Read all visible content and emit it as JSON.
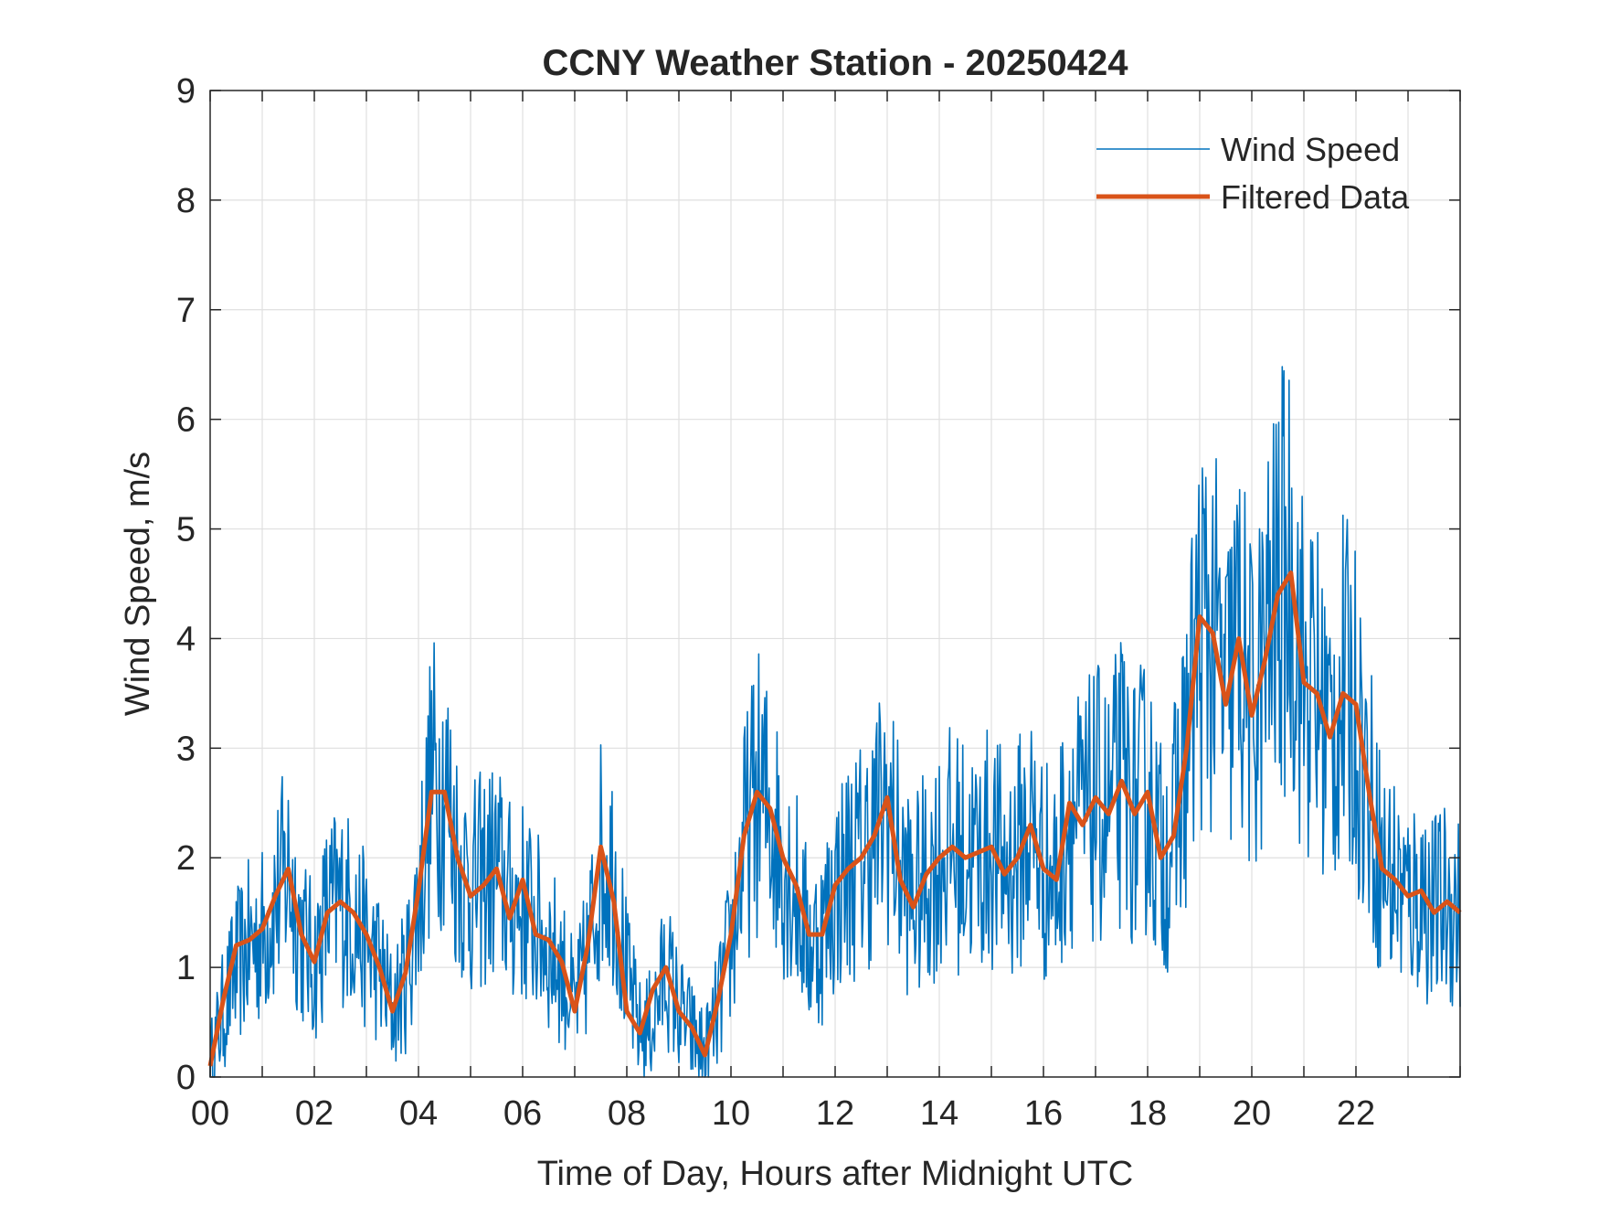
{
  "chart_data": {
    "type": "line",
    "title": "CCNY Weather Station - 20250424",
    "xlabel": "Time of Day, Hours after Midnight UTC",
    "ylabel": "Wind Speed, m/s",
    "xlim": [
      0,
      24
    ],
    "ylim": [
      0,
      9
    ],
    "xticks": [
      0,
      2,
      4,
      6,
      8,
      10,
      12,
      14,
      16,
      18,
      20,
      22
    ],
    "xtick_labels": [
      "00",
      "02",
      "04",
      "06",
      "08",
      "10",
      "12",
      "14",
      "16",
      "18",
      "20",
      "22"
    ],
    "yticks": [
      0,
      1,
      2,
      3,
      4,
      5,
      6,
      7,
      8,
      9
    ],
    "ytick_labels": [
      "0",
      "1",
      "2",
      "3",
      "4",
      "5",
      "6",
      "7",
      "8",
      "9"
    ],
    "grid": true,
    "legend_position": "top-right",
    "series": [
      {
        "name": "Wind Speed",
        "color": "#0072BD",
        "line_width": "thin",
        "x": [
          0.0,
          0.25,
          0.5,
          0.75,
          1.0,
          1.25,
          1.5,
          1.75,
          2.0,
          2.25,
          2.5,
          2.75,
          3.0,
          3.25,
          3.5,
          3.75,
          4.0,
          4.25,
          4.5,
          4.75,
          5.0,
          5.25,
          5.5,
          5.75,
          6.0,
          6.25,
          6.5,
          6.75,
          7.0,
          7.25,
          7.5,
          7.75,
          8.0,
          8.25,
          8.5,
          8.75,
          9.0,
          9.25,
          9.5,
          9.75,
          10.0,
          10.25,
          10.5,
          10.75,
          11.0,
          11.25,
          11.5,
          11.75,
          12.0,
          12.25,
          12.5,
          12.75,
          13.0,
          13.25,
          13.5,
          13.75,
          14.0,
          14.25,
          14.5,
          14.75,
          15.0,
          15.25,
          15.5,
          15.75,
          16.0,
          16.25,
          16.5,
          16.75,
          17.0,
          17.25,
          17.5,
          17.75,
          18.0,
          18.25,
          18.5,
          18.75,
          19.0,
          19.25,
          19.5,
          19.75,
          20.0,
          20.25,
          20.5,
          20.75,
          21.0,
          21.25,
          21.5,
          21.75,
          22.0,
          22.25,
          22.5,
          22.75,
          23.0,
          23.25,
          23.5,
          23.75,
          24.0
        ],
        "y": [
          0.1,
          0.6,
          1.0,
          1.2,
          1.3,
          1.6,
          1.9,
          1.3,
          1.0,
          1.5,
          1.6,
          1.5,
          1.2,
          1.0,
          0.6,
          0.9,
          1.6,
          2.7,
          2.7,
          2.0,
          1.7,
          1.8,
          1.9,
          1.6,
          1.6,
          1.4,
          1.2,
          1.0,
          0.6,
          1.1,
          2.0,
          1.9,
          0.9,
          0.4,
          0.5,
          1.0,
          0.6,
          0.4,
          0.2,
          0.6,
          1.2,
          2.1,
          2.6,
          2.4,
          2.0,
          1.7,
          1.2,
          1.3,
          1.7,
          1.9,
          2.0,
          2.2,
          2.5,
          1.9,
          1.6,
          1.8,
          2.0,
          2.1,
          2.0,
          2.0,
          2.1,
          1.9,
          2.0,
          2.3,
          1.9,
          1.8,
          2.5,
          2.3,
          2.5,
          2.4,
          2.7,
          2.4,
          2.6,
          2.0,
          2.2,
          3.0,
          4.1,
          4.0,
          3.4,
          4.0,
          3.3,
          3.8,
          4.4,
          4.6,
          3.6,
          3.5,
          3.1,
          3.5,
          3.3,
          2.6,
          1.9,
          1.8,
          1.6,
          1.7,
          1.5,
          1.6,
          1.5
        ],
        "note_samples": "dense 1-minute style trace; values sampled at quarter hours"
      },
      {
        "name": "Filtered Data",
        "color": "#D95319",
        "line_width": "thick",
        "x": [
          0.0,
          0.25,
          0.5,
          0.75,
          1.0,
          1.25,
          1.5,
          1.75,
          2.0,
          2.25,
          2.5,
          2.75,
          3.0,
          3.25,
          3.5,
          3.75,
          4.0,
          4.25,
          4.5,
          4.75,
          5.0,
          5.25,
          5.5,
          5.75,
          6.0,
          6.25,
          6.5,
          6.75,
          7.0,
          7.25,
          7.5,
          7.75,
          8.0,
          8.25,
          8.5,
          8.75,
          9.0,
          9.25,
          9.5,
          9.75,
          10.0,
          10.25,
          10.5,
          10.75,
          11.0,
          11.25,
          11.5,
          11.75,
          12.0,
          12.25,
          12.5,
          12.75,
          13.0,
          13.25,
          13.5,
          13.75,
          14.0,
          14.25,
          14.5,
          14.75,
          15.0,
          15.25,
          15.5,
          15.75,
          16.0,
          16.25,
          16.5,
          16.75,
          17.0,
          17.25,
          17.5,
          17.75,
          18.0,
          18.25,
          18.5,
          18.75,
          19.0,
          19.25,
          19.5,
          19.75,
          20.0,
          20.25,
          20.5,
          20.75,
          21.0,
          21.25,
          21.5,
          21.75,
          22.0,
          22.25,
          22.5,
          22.75,
          23.0,
          23.25,
          23.5,
          23.75,
          24.0
        ],
        "y": [
          0.1,
          0.7,
          1.2,
          1.25,
          1.35,
          1.65,
          1.9,
          1.3,
          1.05,
          1.5,
          1.6,
          1.5,
          1.3,
          1.0,
          0.6,
          0.95,
          1.7,
          2.6,
          2.6,
          2.0,
          1.65,
          1.75,
          1.9,
          1.45,
          1.8,
          1.3,
          1.25,
          1.05,
          0.6,
          1.2,
          2.1,
          1.6,
          0.6,
          0.4,
          0.8,
          1.0,
          0.6,
          0.45,
          0.2,
          0.7,
          1.3,
          2.2,
          2.6,
          2.45,
          2.0,
          1.75,
          1.3,
          1.3,
          1.75,
          1.9,
          2.0,
          2.2,
          2.55,
          1.8,
          1.55,
          1.85,
          2.0,
          2.1,
          2.0,
          2.05,
          2.1,
          1.85,
          2.0,
          2.3,
          1.9,
          1.8,
          2.5,
          2.3,
          2.55,
          2.4,
          2.7,
          2.4,
          2.6,
          2.0,
          2.2,
          3.0,
          4.2,
          4.05,
          3.4,
          4.0,
          3.3,
          3.8,
          4.4,
          4.6,
          3.6,
          3.5,
          3.1,
          3.5,
          3.4,
          2.6,
          1.9,
          1.8,
          1.65,
          1.7,
          1.5,
          1.6,
          1.5
        ]
      }
    ]
  }
}
